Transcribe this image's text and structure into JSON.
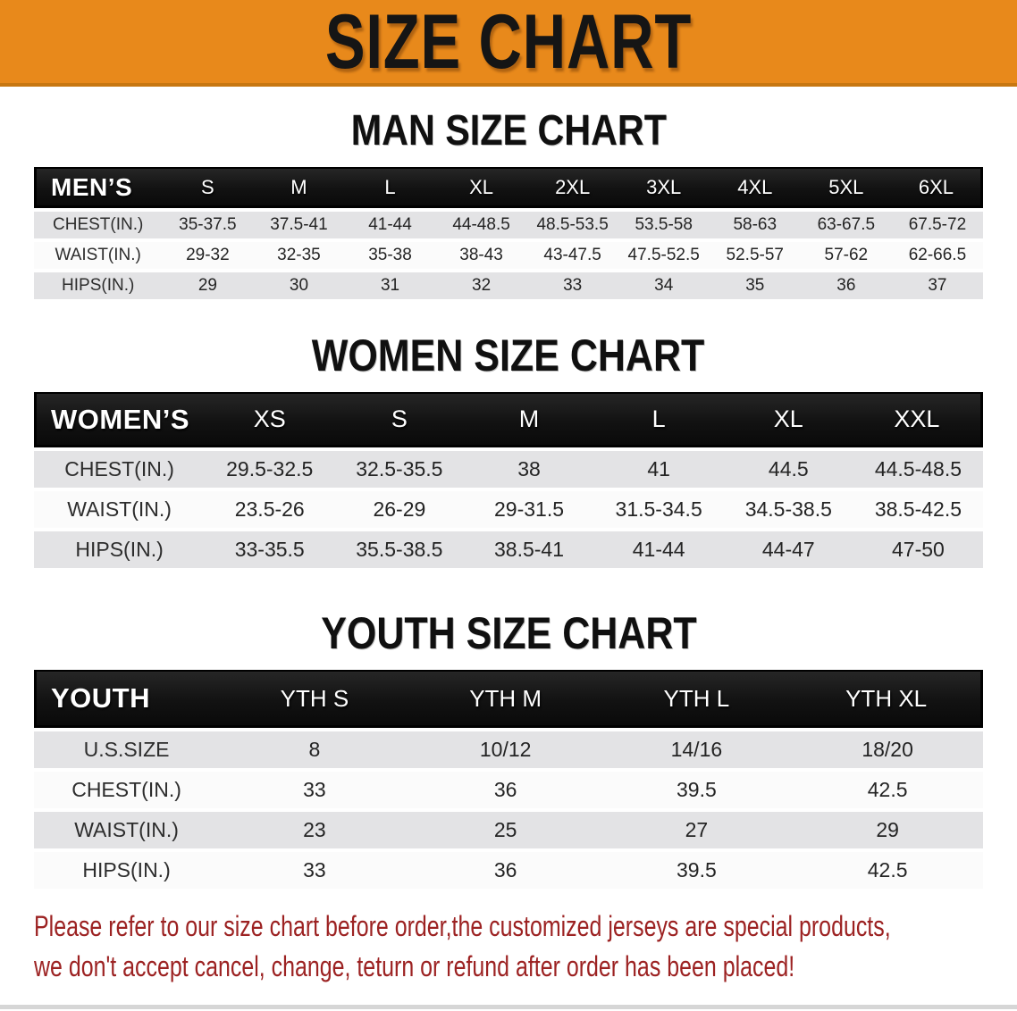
{
  "banner": {
    "title": "SIZE CHART",
    "bg_color": "#e8891b",
    "text_color": "#151515"
  },
  "sections": [
    {
      "heading": "MAN SIZE CHART",
      "header_label": "MEN’S",
      "columns": [
        "S",
        "M",
        "L",
        "XL",
        "2XL",
        "3XL",
        "4XL",
        "5XL",
        "6XL"
      ],
      "rows": [
        {
          "label": "CHEST(IN.)",
          "values": [
            "35-37.5",
            "37.5-41",
            "41-44",
            "44-48.5",
            "48.5-53.5",
            "53.5-58",
            "58-63",
            "63-67.5",
            "67.5-72"
          ]
        },
        {
          "label": "WAIST(IN.)",
          "values": [
            "29-32",
            "32-35",
            "35-38",
            "38-43",
            "43-47.5",
            "47.5-52.5",
            "52.5-57",
            "57-62",
            "62-66.5"
          ]
        },
        {
          "label": "HIPS(IN.)",
          "values": [
            "29",
            "30",
            "31",
            "32",
            "33",
            "34",
            "35",
            "36",
            "37"
          ]
        }
      ]
    },
    {
      "heading": "WOMEN SIZE CHART",
      "header_label": "WOMEN’S",
      "columns": [
        "XS",
        "S",
        "M",
        "L",
        "XL",
        "XXL"
      ],
      "rows": [
        {
          "label": "CHEST(IN.)",
          "values": [
            "29.5-32.5",
            "32.5-35.5",
            "38",
            "41",
            "44.5",
            "44.5-48.5"
          ]
        },
        {
          "label": "WAIST(IN.)",
          "values": [
            "23.5-26",
            "26-29",
            "29-31.5",
            "31.5-34.5",
            "34.5-38.5",
            "38.5-42.5"
          ]
        },
        {
          "label": "HIPS(IN.)",
          "values": [
            "33-35.5",
            "35.5-38.5",
            "38.5-41",
            "41-44",
            "44-47",
            "47-50"
          ]
        }
      ]
    },
    {
      "heading": "YOUTH SIZE CHART",
      "header_label": "YOUTH",
      "columns": [
        "YTH S",
        "YTH M",
        "YTH L",
        "YTH XL"
      ],
      "rows": [
        {
          "label": "U.S.SIZE",
          "values": [
            "8",
            "10/12",
            "14/16",
            "18/20"
          ]
        },
        {
          "label": "CHEST(IN.)",
          "values": [
            "33",
            "36",
            "39.5",
            "42.5"
          ]
        },
        {
          "label": "WAIST(IN.)",
          "values": [
            "23",
            "25",
            "27",
            "29"
          ]
        },
        {
          "label": "HIPS(IN.)",
          "values": [
            "33",
            "36",
            "39.5",
            "42.5"
          ]
        }
      ]
    }
  ],
  "notice": {
    "line1": "Please refer to our size chart before order,the customized jerseys are special products,",
    "line2": "we don't accept cancel, change, teturn or refund after order has been placed!",
    "text_color": "#9c2222"
  }
}
